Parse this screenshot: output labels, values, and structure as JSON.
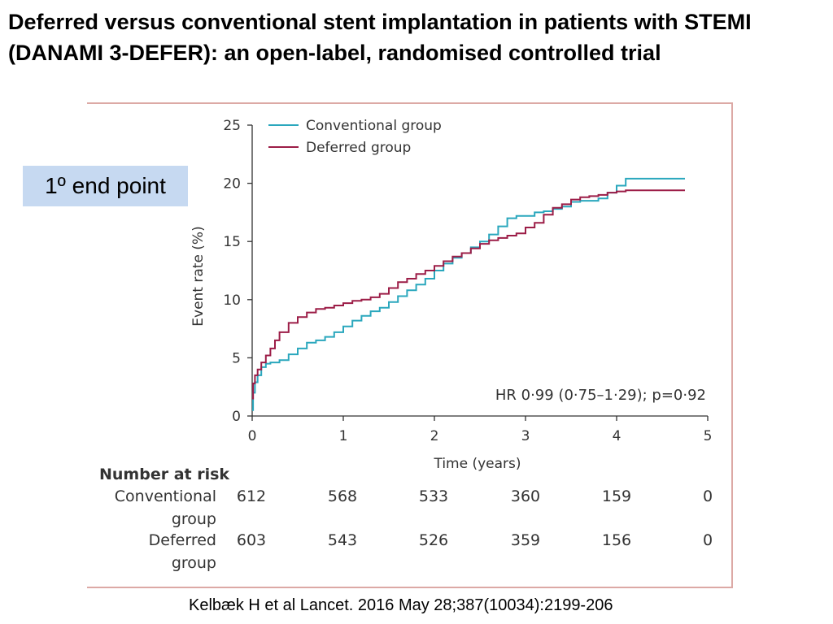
{
  "slide": {
    "title": "Deferred versus conventional stent implantation in patients with STEMI  (DANAMI 3-DEFER): an open-label, randomised controlled trial",
    "endpoint_label": "1º end point",
    "citation": "Kelbæk H et al Lancet. 2016 May 28;387(10034):2199-206"
  },
  "colors": {
    "conventional": "#2aa7bd",
    "deferred": "#9c1d47",
    "frame": "#dca9a5",
    "endpoint_box": "#c6d9f1"
  },
  "chart_data": {
    "type": "line",
    "xlabel": "Time (years)",
    "ylabel": "Event rate (%)",
    "xlim": [
      0,
      5
    ],
    "ylim": [
      0,
      25
    ],
    "x_ticks": [
      "0",
      "1",
      "2",
      "3",
      "4",
      "5"
    ],
    "y_ticks": [
      "0",
      "5",
      "10",
      "15",
      "20",
      "25"
    ],
    "grid": false,
    "legend_position": "top-left",
    "annotation": "HR 0·99 (0·75–1·29); p=0·92",
    "series": [
      {
        "name": "Conventional group",
        "color": "#2aa7bd",
        "x": [
          0,
          0.01,
          0.03,
          0.06,
          0.1,
          0.15,
          0.2,
          0.3,
          0.4,
          0.5,
          0.6,
          0.7,
          0.8,
          0.9,
          1.0,
          1.1,
          1.2,
          1.3,
          1.4,
          1.5,
          1.6,
          1.7,
          1.8,
          1.9,
          2.0,
          2.1,
          2.2,
          2.3,
          2.4,
          2.5,
          2.6,
          2.7,
          2.8,
          2.9,
          3.0,
          3.1,
          3.2,
          3.3,
          3.4,
          3.5,
          3.6,
          3.7,
          3.8,
          3.9,
          4.0,
          4.1,
          4.3,
          4.5,
          4.75
        ],
        "y": [
          0.5,
          2.0,
          2.9,
          3.5,
          4.2,
          4.5,
          4.6,
          4.8,
          5.3,
          5.8,
          6.3,
          6.5,
          6.8,
          7.2,
          7.7,
          8.2,
          8.6,
          9.0,
          9.3,
          9.8,
          10.3,
          10.8,
          11.3,
          11.8,
          12.5,
          13.1,
          13.6,
          14.0,
          14.5,
          15.0,
          15.6,
          16.3,
          17.0,
          17.2,
          17.2,
          17.5,
          17.6,
          17.8,
          18.0,
          18.4,
          18.5,
          18.5,
          18.7,
          19.2,
          19.8,
          20.4,
          20.4,
          20.4,
          20.4
        ]
      },
      {
        "name": "Deferred group",
        "color": "#9c1d47",
        "x": [
          0,
          0.01,
          0.03,
          0.06,
          0.1,
          0.15,
          0.2,
          0.25,
          0.3,
          0.4,
          0.5,
          0.6,
          0.7,
          0.8,
          0.9,
          1.0,
          1.1,
          1.2,
          1.3,
          1.4,
          1.5,
          1.6,
          1.7,
          1.8,
          1.9,
          2.0,
          2.1,
          2.2,
          2.3,
          2.4,
          2.5,
          2.6,
          2.7,
          2.8,
          2.9,
          3.0,
          3.1,
          3.2,
          3.3,
          3.4,
          3.5,
          3.6,
          3.7,
          3.8,
          3.9,
          4.0,
          4.1,
          4.3,
          4.5,
          4.75
        ],
        "y": [
          1.5,
          2.8,
          3.5,
          4.0,
          4.6,
          5.2,
          5.8,
          6.5,
          7.2,
          8.0,
          8.5,
          8.9,
          9.2,
          9.3,
          9.5,
          9.7,
          9.9,
          10.0,
          10.2,
          10.5,
          11.0,
          11.5,
          11.8,
          12.2,
          12.5,
          12.9,
          13.3,
          13.7,
          14.0,
          14.4,
          14.8,
          15.1,
          15.3,
          15.5,
          15.7,
          16.2,
          16.6,
          17.3,
          17.9,
          18.2,
          18.6,
          18.8,
          18.9,
          19.0,
          19.2,
          19.3,
          19.4,
          19.4,
          19.4,
          19.4
        ]
      }
    ],
    "number_at_risk": {
      "heading": "Number at risk",
      "rows": [
        {
          "label_line1": "Conventional",
          "label_line2": "group",
          "values": [
            "612",
            "568",
            "533",
            "360",
            "159",
            "0"
          ]
        },
        {
          "label_line1": "Deferred",
          "label_line2": "group",
          "values": [
            "603",
            "543",
            "526",
            "359",
            "156",
            "0"
          ]
        }
      ]
    }
  }
}
